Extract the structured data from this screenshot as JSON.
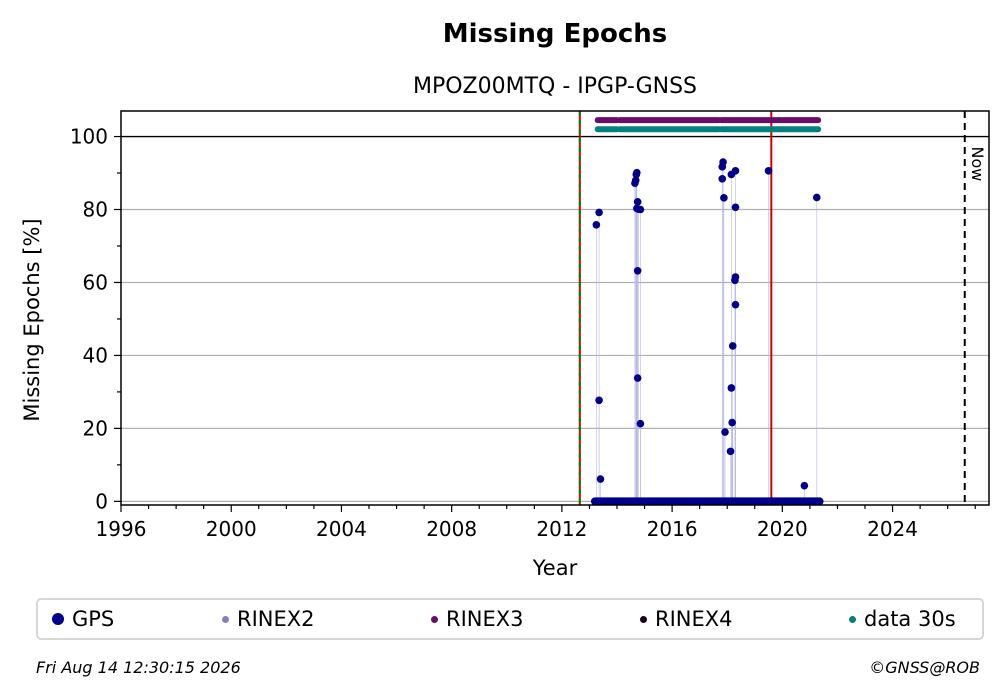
{
  "chart_data": {
    "type": "scatter",
    "title": "Missing Epochs",
    "subtitle": "MPOZ00MTQ - IPGP-GNSS",
    "xlabel": "Year",
    "ylabel": "Missing Epochs [%]",
    "xlim": [
      1996,
      2027.5
    ],
    "ylim": [
      -1,
      107
    ],
    "x_ticks": [
      1996,
      2000,
      2004,
      2008,
      2012,
      2016,
      2020,
      2024
    ],
    "y_ticks": [
      0,
      20,
      40,
      60,
      80,
      100
    ],
    "grid": "horizontal",
    "reference_lines": {
      "green_dashed_red_x": 2012.65,
      "red_x": 2019.6,
      "now_x": 2026.62,
      "now_label": "Now",
      "hundred_y": 100
    },
    "series": [
      {
        "name": "GPS",
        "color": "#00008b",
        "points": [
          [
            2013.25,
            75.8
          ],
          [
            2013.35,
            79.2
          ],
          [
            2013.35,
            27.7
          ],
          [
            2013.4,
            6.1
          ],
          [
            2014.65,
            87.2
          ],
          [
            2014.68,
            88.0
          ],
          [
            2014.7,
            89.6
          ],
          [
            2014.72,
            90.1
          ],
          [
            2014.75,
            82.1
          ],
          [
            2014.72,
            80.3
          ],
          [
            2014.78,
            80.1
          ],
          [
            2014.85,
            80.0
          ],
          [
            2014.75,
            63.2
          ],
          [
            2014.75,
            33.8
          ],
          [
            2014.85,
            21.3
          ],
          [
            2017.82,
            91.7
          ],
          [
            2017.85,
            93.0
          ],
          [
            2017.82,
            88.4
          ],
          [
            2017.88,
            83.2
          ],
          [
            2017.92,
            19.0
          ],
          [
            2018.15,
            89.6
          ],
          [
            2018.3,
            90.6
          ],
          [
            2018.3,
            80.6
          ],
          [
            2018.3,
            61.5
          ],
          [
            2018.28,
            60.6
          ],
          [
            2018.3,
            53.9
          ],
          [
            2018.2,
            42.6
          ],
          [
            2018.15,
            31.1
          ],
          [
            2018.18,
            21.6
          ],
          [
            2018.12,
            13.7
          ],
          [
            2019.5,
            90.6
          ],
          [
            2020.8,
            4.3
          ],
          [
            2021.25,
            83.3
          ]
        ],
        "zero_range": [
          2013.2,
          2021.35
        ]
      },
      {
        "name": "RINEX3",
        "color": "#6a0d6a",
        "y": 104.5,
        "ranges": [
          [
            2013.3,
            2014.0
          ],
          [
            2014.1,
            2017.7
          ],
          [
            2017.78,
            2021.3
          ]
        ]
      },
      {
        "name": "data 30s",
        "color": "#008080",
        "y": 102,
        "ranges": [
          [
            2013.3,
            2014.0
          ],
          [
            2014.1,
            2017.7
          ],
          [
            2017.78,
            2021.3
          ]
        ]
      }
    ],
    "legend": [
      {
        "name": "GPS",
        "color": "#00008b",
        "size": 12
      },
      {
        "name": "RINEX2",
        "color": "#8b7bbf",
        "size": 7
      },
      {
        "name": "RINEX3",
        "color": "#6a0d6a",
        "size": 7
      },
      {
        "name": "RINEX4",
        "color": "#220022",
        "size": 7
      },
      {
        "name": "data 30s",
        "color": "#008080",
        "size": 7
      }
    ],
    "legend_placement": "bottom"
  },
  "footer": {
    "timestamp": "Fri Aug 14 12:30:15 2026",
    "credit": "©GNSS@ROB"
  }
}
